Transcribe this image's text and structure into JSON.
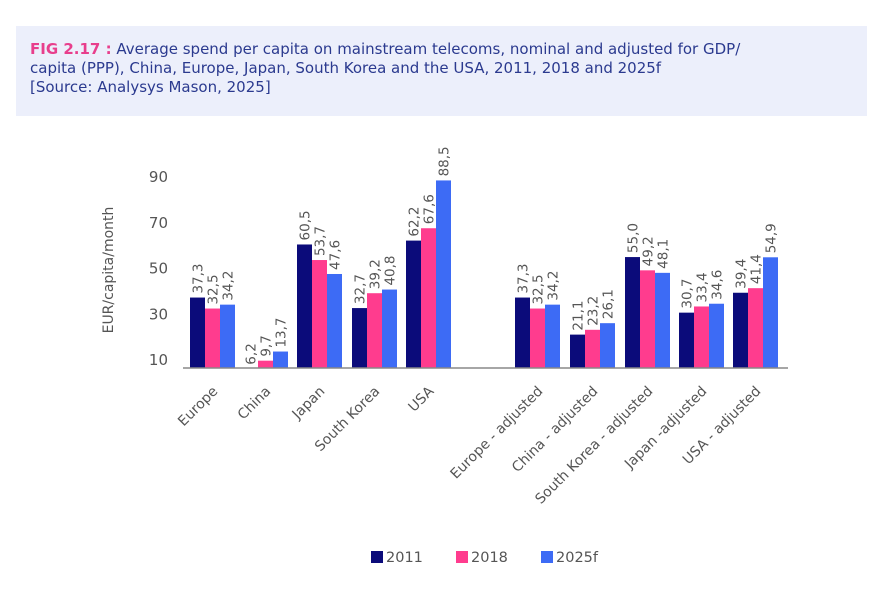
{
  "caption": {
    "fig_label": "FIG 2.17 :",
    "line1": " Average spend per capita on mainstream telecoms, nominal and adjusted for GDP/",
    "line2": "capita (PPP), China, Europe, Japan, South Korea and the USA, 2011, 2018 and 2025f",
    "line3": "[Source: Analysys Mason, 2025]"
  },
  "colors": {
    "2011": "#0b0b7a",
    "2018": "#ff3c8e",
    "2025f": "#3d6bf5",
    "axis": "#888888"
  },
  "chart_data": {
    "type": "bar",
    "ylabel": "EUR/capita/month",
    "ylim": [
      10,
      90
    ],
    "yticks": [
      10,
      30,
      50,
      70,
      90
    ],
    "grid": false,
    "legend_position": "bottom",
    "categories": [
      "Europe",
      "China",
      "Japan",
      "South Korea",
      "USA",
      "Europe - adjusted",
      "China - adjusted",
      "South Korea - adjusted",
      "Japan -adjusted",
      "USA - adjusted"
    ],
    "series": [
      {
        "name": "2011",
        "values": [
          37.3,
          6.2,
          60.5,
          32.7,
          62.2,
          37.3,
          21.1,
          55.0,
          30.7,
          39.4
        ],
        "labels": [
          "37,3",
          "6,2",
          "60,5",
          "32,7",
          "62,2",
          "37,3",
          "21,1",
          "55,0",
          "30,7",
          "39,4"
        ]
      },
      {
        "name": "2018",
        "values": [
          32.5,
          9.7,
          53.7,
          39.2,
          67.6,
          32.5,
          23.2,
          49.2,
          33.4,
          41.4
        ],
        "labels": [
          "32,5",
          "9,7",
          "53,7",
          "39,2",
          "67,6",
          "32,5",
          "23,2",
          "49,2",
          "33,4",
          "41,4"
        ]
      },
      {
        "name": "2025f",
        "values": [
          34.2,
          13.7,
          47.6,
          40.8,
          88.5,
          34.2,
          26.1,
          48.1,
          34.6,
          54.9
        ],
        "labels": [
          "34,2",
          "13,7",
          "47,6",
          "40,8",
          "88,5",
          "34,2",
          "26,1",
          "48,1",
          "34,6",
          "54,9"
        ]
      }
    ]
  }
}
